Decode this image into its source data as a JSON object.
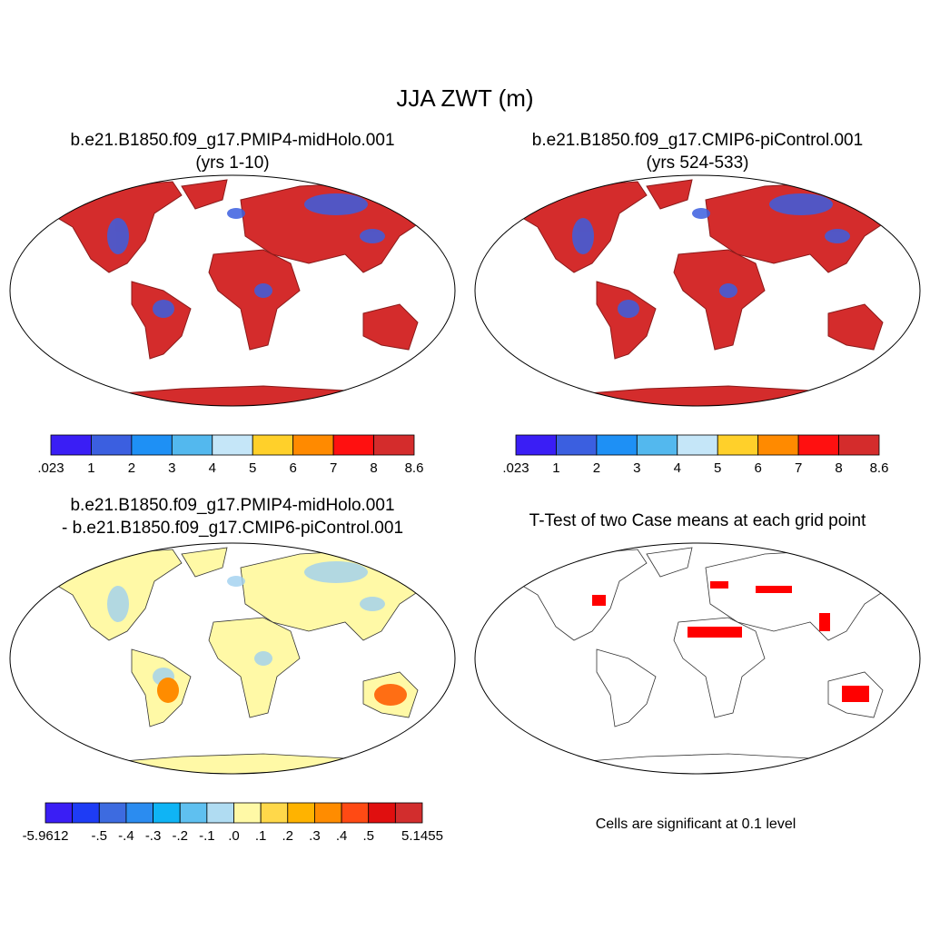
{
  "title": "JJA ZWT (m)",
  "panels": [
    {
      "title": [
        "b.e21.B1850.f09_g17.PMIP4-midHolo.001",
        "(yrs 1-10)"
      ],
      "colorbar": {
        "colors": [
          "#3a1ef5",
          "#3b5fe0",
          "#1e90f5",
          "#53b8ee",
          "#c5e6f8",
          "#ffd02a",
          "#ff8a00",
          "#ff1010",
          "#d42c2c"
        ],
        "labels": [
          ".023",
          "1",
          "2",
          "3",
          "4",
          "5",
          "6",
          "7",
          "8",
          "8.6"
        ]
      }
    },
    {
      "title": [
        "b.e21.B1850.f09_g17.CMIP6-piControl.001",
        "(yrs 524-533)"
      ],
      "colorbar": {
        "colors": [
          "#3a1ef5",
          "#3b5fe0",
          "#1e90f5",
          "#53b8ee",
          "#c5e6f8",
          "#ffd02a",
          "#ff8a00",
          "#ff1010",
          "#d42c2c"
        ],
        "labels": [
          ".023",
          "1",
          "2",
          "3",
          "4",
          "5",
          "6",
          "7",
          "8",
          "8.6"
        ]
      }
    },
    {
      "title": [
        "b.e21.B1850.f09_g17.PMIP4-midHolo.001",
        "- b.e21.B1850.f09_g17.CMIP6-piControl.001"
      ],
      "colorbar": {
        "colors": [
          "#3a1ef5",
          "#1e3cf5",
          "#3d6be0",
          "#2b8cf0",
          "#0fb4f5",
          "#5fc0f0",
          "#b0dcf2",
          "#fff9a6",
          "#ffd84a",
          "#ffb300",
          "#ff8c00",
          "#ff4a14",
          "#e00f0f",
          "#d22d2d"
        ],
        "labels": [
          "-5.9612",
          null,
          "-.5",
          "-.4",
          "-.3",
          "-.2",
          "-.1",
          ".0",
          ".1",
          ".2",
          ".3",
          ".4",
          ".5",
          null,
          "5.1455"
        ]
      }
    },
    {
      "title": [
        "T-Test of two Case means at each grid point"
      ],
      "note": "Cells are significant at 0.1 level"
    }
  ]
}
